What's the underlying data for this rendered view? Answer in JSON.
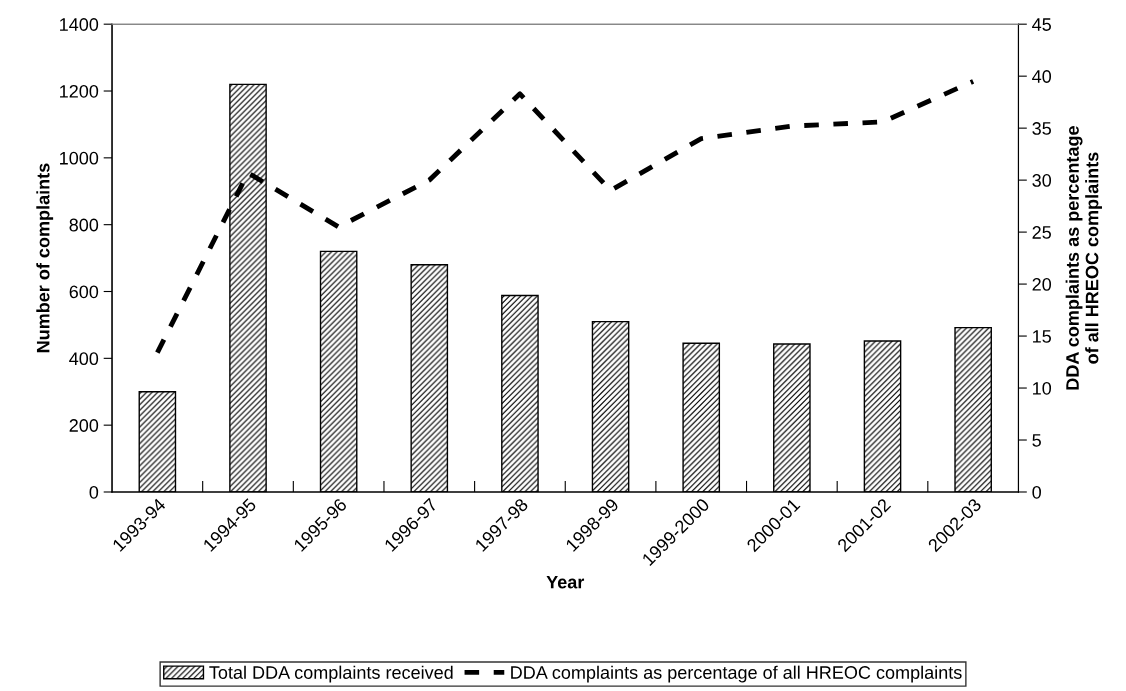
{
  "chart_data": {
    "type": "bar",
    "xlabel": "Year",
    "ylabel": "Number of complaints",
    "y2label": "DDA complaints as percentage\nof all HREOC complaints",
    "categories": [
      "1993-94",
      "1994-95",
      "1995-96",
      "1996-97",
      "1997-98",
      "1998-99",
      "1999-2000",
      "2000-01",
      "2001-02",
      "2002-03"
    ],
    "series": [
      {
        "name": "Total DDA complaints received",
        "color": "#000000",
        "values": [
          300,
          1220,
          720,
          680,
          588,
          510,
          445,
          443,
          452,
          492
        ]
      },
      {
        "name": "DDA complaints as percentage of all HREOC complaints",
        "type": "line",
        "axis": "y2",
        "color": "#000000",
        "line_style": "dashed",
        "values": [
          13.4,
          30.7,
          25.5,
          30,
          38.3,
          29,
          34,
          35.2,
          35.6,
          39.5
        ]
      }
    ],
    "ylim": [
      0,
      1400
    ],
    "yticks": [
      0,
      200,
      400,
      600,
      800,
      1000,
      1200,
      1400
    ],
    "y2lim": [
      0,
      45
    ],
    "y2ticks": [
      0,
      5,
      10,
      15,
      20,
      25,
      30,
      35,
      40,
      45
    ],
    "grid": false,
    "legend": "bottom"
  }
}
